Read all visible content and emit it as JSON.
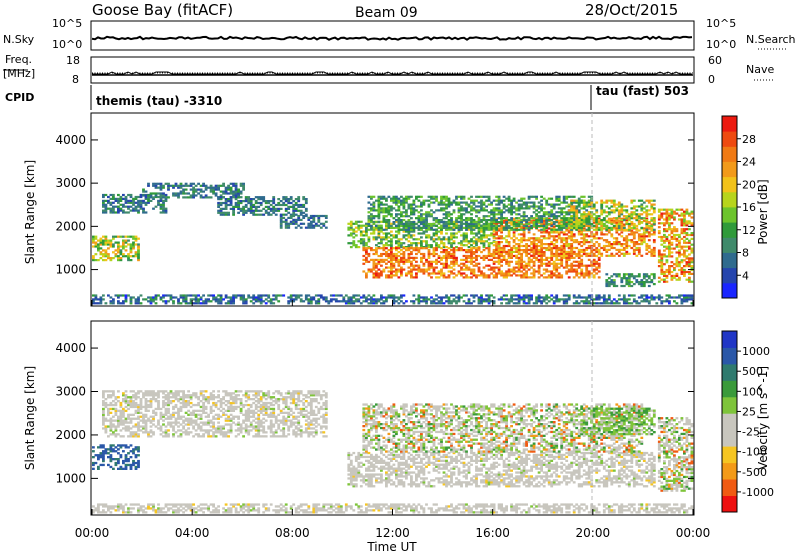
{
  "header": {
    "title": "Goose Bay (fitACF)",
    "beam": "Beam 09",
    "date": "28/Oct/2015"
  },
  "strips": {
    "nsky_label": "N.Sky",
    "nsearch_label": "N.Search",
    "nsky_ticks": [
      "10^5",
      "10^0"
    ],
    "nsky_right_ticks": [
      "10^5",
      "10^0"
    ],
    "freq_label_1": "Freq.",
    "freq_label_2": "[MHz]",
    "freq_ticks": [
      "18",
      "8"
    ],
    "nave_label": "Nave",
    "nave_ticks": [
      "60",
      "0"
    ],
    "cpid_label": "CPID",
    "cpid_1": "themis (tau) -3310",
    "cpid_2": "tau (fast) 503"
  },
  "colors": {
    "power_scale": [
      "#1a26ff",
      "#2545ad",
      "#2f6b8e",
      "#3f8a6b",
      "#2f9a3a",
      "#6cc42c",
      "#b7d41c",
      "#f2c21a",
      "#f29a1a",
      "#f07a14",
      "#ee4a10",
      "#ec1a10"
    ],
    "velocity_scale": [
      "#ee1010",
      "#f05a12",
      "#f39a18",
      "#f5c522",
      "#c8c6be",
      "#c8c6be",
      "#7ec43a",
      "#3a9a3a",
      "#2f7a6e",
      "#2a57a8",
      "#2036c6"
    ]
  },
  "chart_data": [
    {
      "type": "heatmap",
      "panel": "power",
      "ylabel": "Slant Range [km]",
      "y_ticks": [
        "4000",
        "3000",
        "2000",
        "1000"
      ],
      "ylim": [
        180,
        4600
      ],
      "xlim": [
        0,
        24
      ],
      "colorbar_label": "Power [dB]",
      "colorbar_ticks": [
        "28",
        "24",
        "20",
        "16",
        "12",
        "8",
        "4"
      ],
      "colorbar_range": [
        0,
        32
      ],
      "bands": [
        {
          "t0": 0.0,
          "t1": 1.9,
          "r0": 1200,
          "r1": 1750,
          "v0": 10,
          "v1": 24
        },
        {
          "t0": 0.4,
          "t1": 3.0,
          "r0": 2300,
          "r1": 2750,
          "v0": 4,
          "v1": 12
        },
        {
          "t0": 2.0,
          "t1": 6.0,
          "r0": 2650,
          "r1": 3000,
          "v0": 4,
          "v1": 12
        },
        {
          "t0": 5.0,
          "t1": 8.5,
          "r0": 2250,
          "r1": 2700,
          "v0": 4,
          "v1": 12
        },
        {
          "t0": 7.5,
          "t1": 9.3,
          "r0": 1950,
          "r1": 2250,
          "v0": 4,
          "v1": 10
        },
        {
          "t0": 10.2,
          "t1": 16.0,
          "r0": 1500,
          "r1": 2100,
          "v0": 8,
          "v1": 20
        },
        {
          "t0": 10.8,
          "t1": 20.3,
          "r0": 800,
          "r1": 1500,
          "v0": 20,
          "v1": 30
        },
        {
          "t0": 16.0,
          "t1": 22.5,
          "r0": 1300,
          "r1": 2200,
          "v0": 18,
          "v1": 30
        },
        {
          "t0": 11.0,
          "t1": 20.0,
          "r0": 1900,
          "r1": 2700,
          "v0": 6,
          "v1": 16
        },
        {
          "t0": 19.0,
          "t1": 22.5,
          "r0": 1900,
          "r1": 2600,
          "v0": 10,
          "v1": 24
        },
        {
          "t0": 22.6,
          "t1": 24.0,
          "r0": 700,
          "r1": 2400,
          "v0": 14,
          "v1": 30
        },
        {
          "t0": 0.0,
          "t1": 24.0,
          "r0": 200,
          "r1": 420,
          "v0": 2,
          "v1": 12
        },
        {
          "t0": 20.5,
          "t1": 22.5,
          "r0": 600,
          "r1": 900,
          "v0": 6,
          "v1": 14
        }
      ]
    },
    {
      "type": "heatmap",
      "panel": "velocity",
      "ylabel": "Slant Range [km]",
      "y_ticks": [
        "4000",
        "3000",
        "2000",
        "1000"
      ],
      "ylim": [
        180,
        4600
      ],
      "xlim": [
        0,
        24
      ],
      "xlabel": "Time UT",
      "x_ticks": [
        "00:00",
        "04:00",
        "08:00",
        "12:00",
        "16:00",
        "20:00",
        "00:00"
      ],
      "colorbar_label": "Velocity [m s^-1]",
      "colorbar_ticks": [
        "1000",
        "500",
        "100",
        "25",
        "-25",
        "-100",
        "-500",
        "-1000"
      ],
      "bands": [
        {
          "t0": 0.0,
          "t1": 1.9,
          "r0": 1200,
          "r1": 1750,
          "kind": "blue"
        },
        {
          "t0": 0.4,
          "t1": 9.3,
          "r0": 1950,
          "r1": 3000,
          "kind": "grey"
        },
        {
          "t0": 10.2,
          "t1": 22.5,
          "r0": 800,
          "r1": 1600,
          "kind": "grey"
        },
        {
          "t0": 10.8,
          "t1": 22.0,
          "r0": 1600,
          "r1": 2700,
          "kind": "mixed"
        },
        {
          "t0": 19.5,
          "t1": 22.5,
          "r0": 2000,
          "r1": 2600,
          "kind": "greenish"
        },
        {
          "t0": 22.6,
          "t1": 24.0,
          "r0": 700,
          "r1": 2400,
          "kind": "mixed"
        },
        {
          "t0": 0.0,
          "t1": 24.0,
          "r0": 200,
          "r1": 420,
          "kind": "grey"
        }
      ]
    }
  ]
}
